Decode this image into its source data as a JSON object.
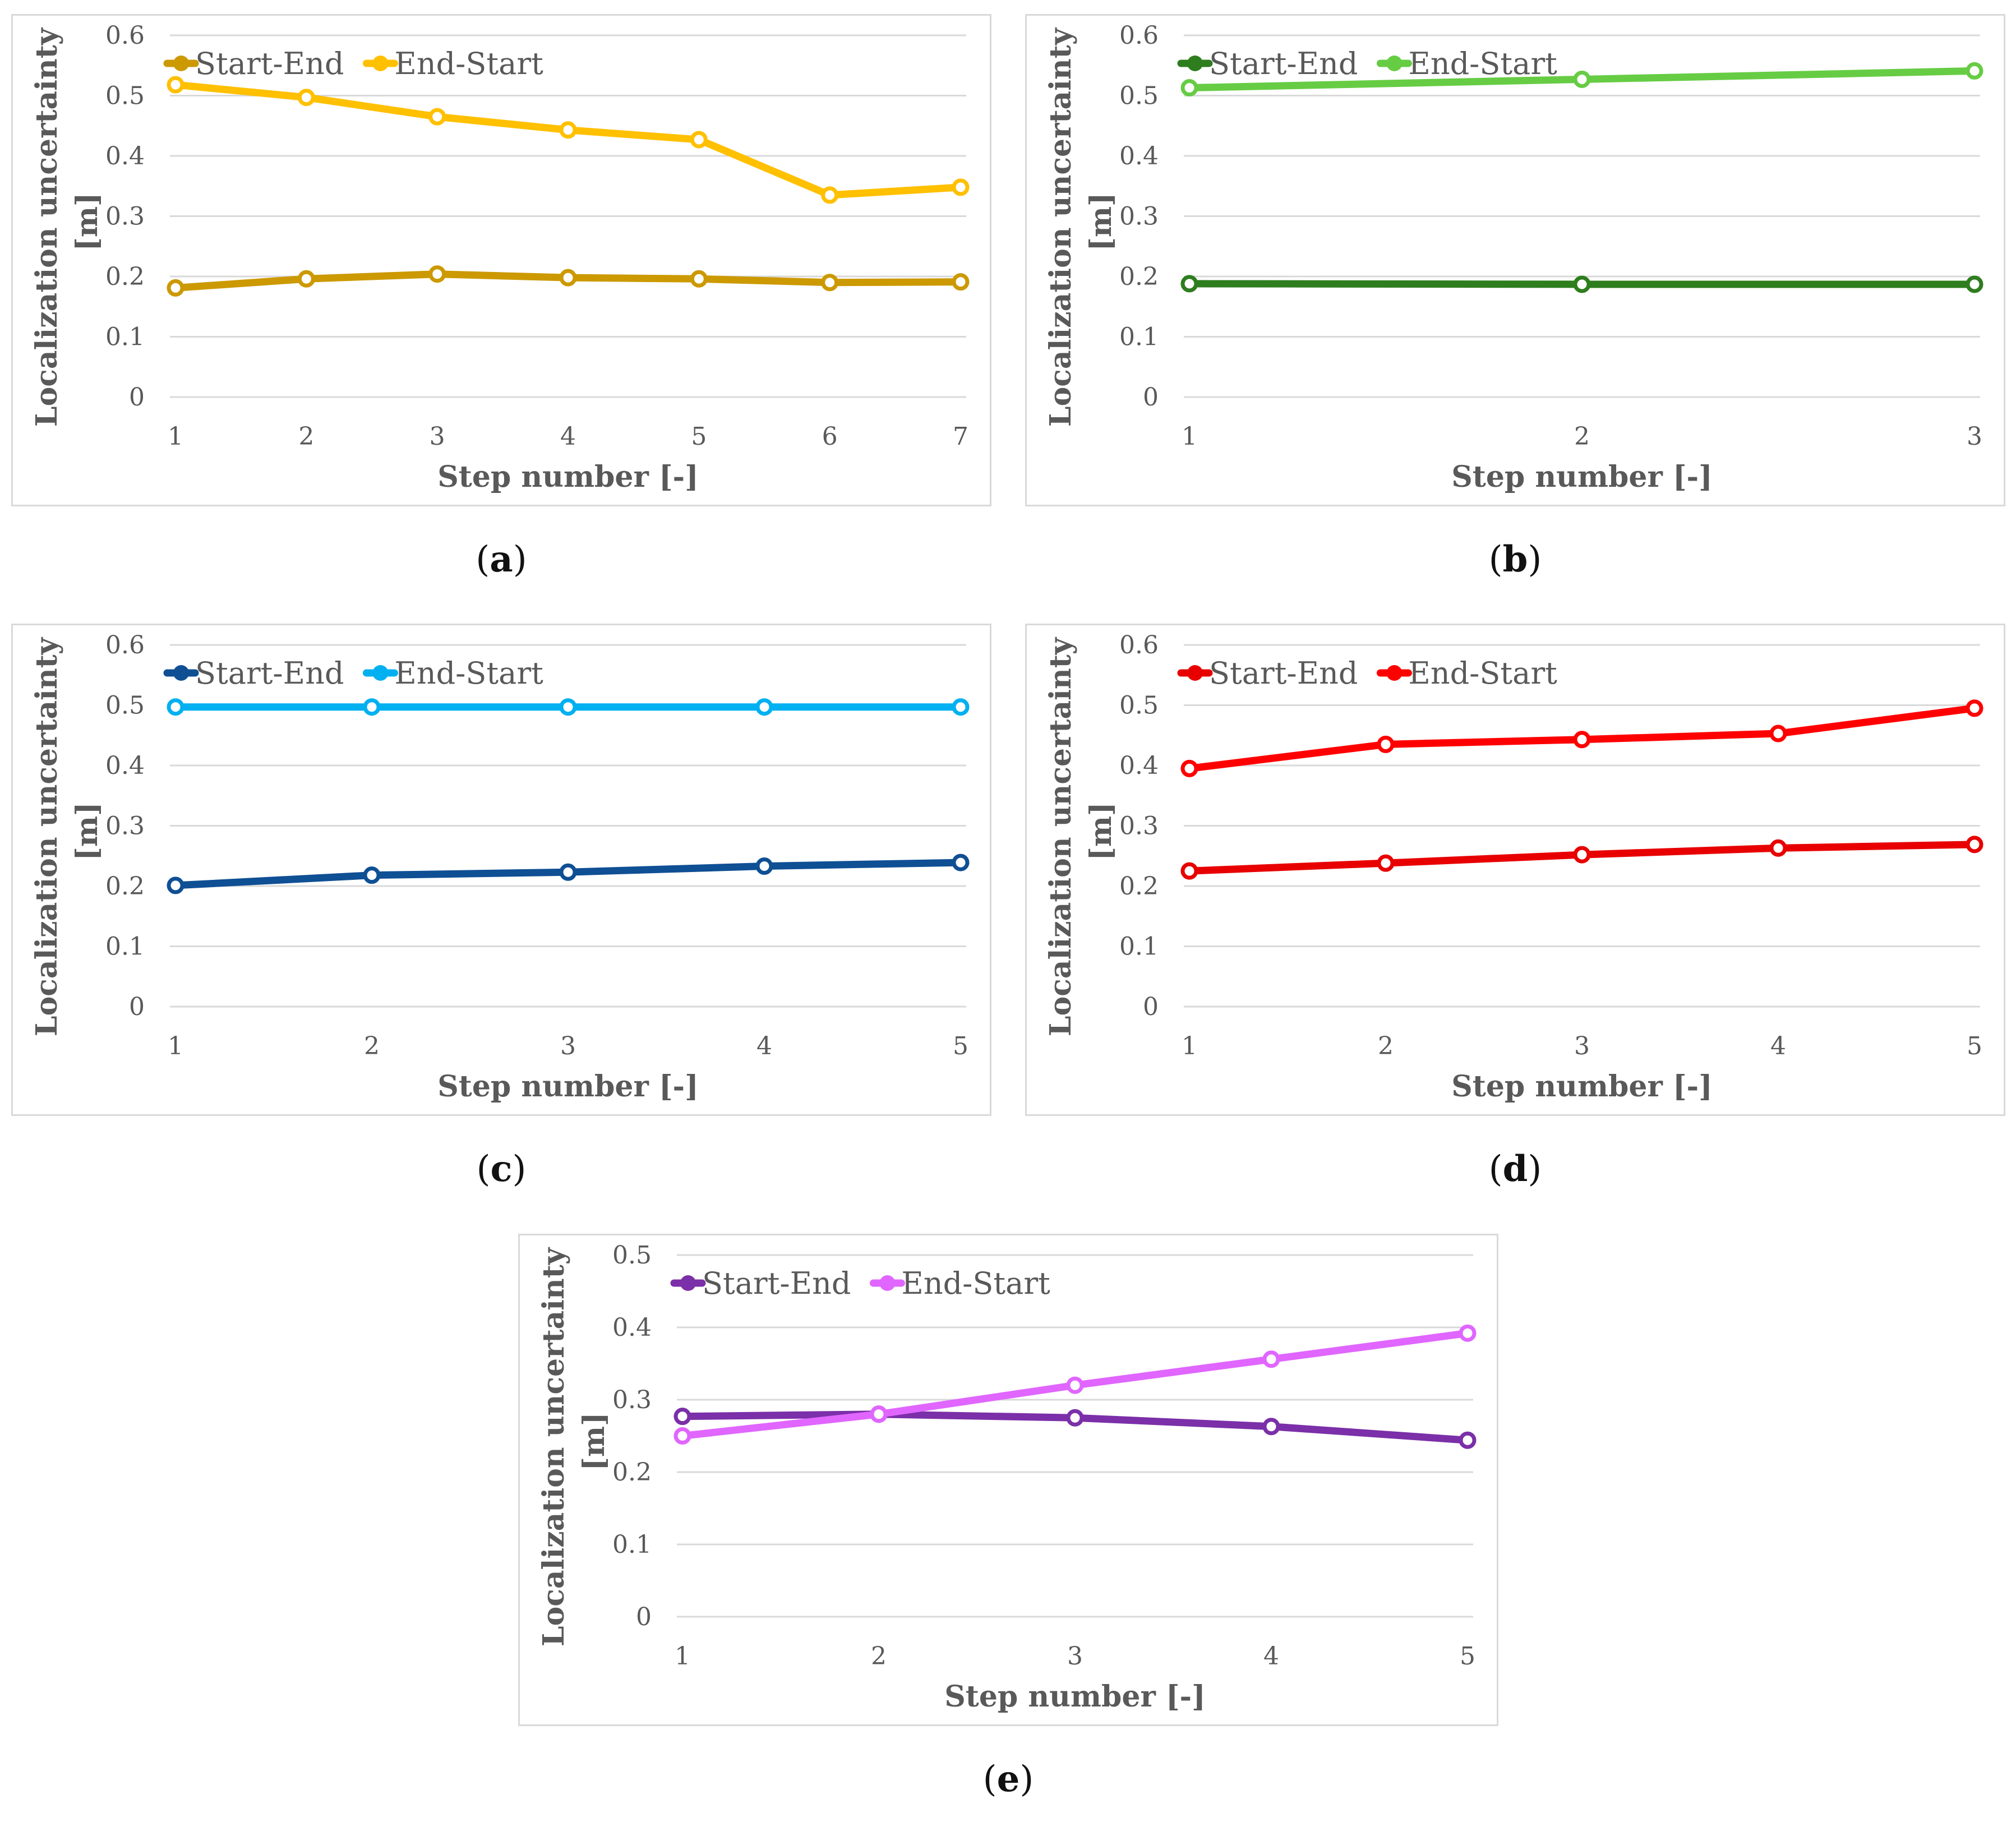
{
  "chart_data": [
    {
      "id": "a",
      "type": "line",
      "caption": "a",
      "xlabel": "Step number [-]",
      "ylabel_line1": "Localization uncertainty",
      "ylabel_line2": "[m]",
      "categories": [
        "1",
        "2",
        "3",
        "4",
        "5",
        "6",
        "7"
      ],
      "ylim": [
        0,
        0.6
      ],
      "yticks": [
        "0",
        "0.1",
        "0.2",
        "0.3",
        "0.4",
        "0.5",
        "0.6"
      ],
      "grid": true,
      "legend_position": "top-left",
      "series": [
        {
          "name": "Start-End",
          "color": "#cc9900",
          "values": [
            0.181,
            0.196,
            0.204,
            0.198,
            0.196,
            0.19,
            0.191
          ]
        },
        {
          "name": "End-Start",
          "color": "#ffc000",
          "values": [
            0.518,
            0.497,
            0.465,
            0.443,
            0.427,
            0.335,
            0.348
          ]
        }
      ]
    },
    {
      "id": "b",
      "type": "line",
      "caption": "b",
      "xlabel": "Step number [-]",
      "ylabel_line1": "Localization uncertainty",
      "ylabel_line2": "[m]",
      "categories": [
        "1",
        "2",
        "3"
      ],
      "ylim": [
        0,
        0.6
      ],
      "yticks": [
        "0",
        "0.1",
        "0.2",
        "0.3",
        "0.4",
        "0.5",
        "0.6"
      ],
      "grid": true,
      "legend_position": "top-left",
      "series": [
        {
          "name": "Start-End",
          "color": "#2e7d1e",
          "values": [
            0.188,
            0.187,
            0.187
          ]
        },
        {
          "name": "End-Start",
          "color": "#66cc44",
          "values": [
            0.513,
            0.527,
            0.541
          ]
        }
      ]
    },
    {
      "id": "c",
      "type": "line",
      "caption": "c",
      "xlabel": "Step number [-]",
      "ylabel_line1": "Localization uncertainty",
      "ylabel_line2": "[m]",
      "categories": [
        "1",
        "2",
        "3",
        "4",
        "5"
      ],
      "ylim": [
        0,
        0.6
      ],
      "yticks": [
        "0",
        "0.1",
        "0.2",
        "0.3",
        "0.4",
        "0.5",
        "0.6"
      ],
      "grid": true,
      "legend_position": "top-left",
      "series": [
        {
          "name": "Start-End",
          "color": "#0f4f94",
          "values": [
            0.201,
            0.218,
            0.223,
            0.233,
            0.239
          ]
        },
        {
          "name": "End-Start",
          "color": "#00b0f0",
          "values": [
            0.497,
            0.497,
            0.497,
            0.497,
            0.497
          ]
        }
      ]
    },
    {
      "id": "d",
      "type": "line",
      "caption": "d",
      "xlabel": "Step number [-]",
      "ylabel_line1": "Localization uncertainty",
      "ylabel_line2": "[m]",
      "categories": [
        "1",
        "2",
        "3",
        "4",
        "5"
      ],
      "ylim": [
        0,
        0.6
      ],
      "yticks": [
        "0",
        "0.1",
        "0.2",
        "0.3",
        "0.4",
        "0.5",
        "0.6"
      ],
      "grid": true,
      "legend_position": "top-left",
      "series": [
        {
          "name": "Start-End",
          "color": "#e80000",
          "values": [
            0.225,
            0.238,
            0.252,
            0.263,
            0.269
          ]
        },
        {
          "name": "End-Start",
          "color": "#ff0000",
          "values": [
            0.395,
            0.435,
            0.443,
            0.453,
            0.495
          ]
        }
      ]
    },
    {
      "id": "e",
      "type": "line",
      "caption": "e",
      "xlabel": "Step number [-]",
      "ylabel_line1": "Localization uncertainty",
      "ylabel_line2": "[m]",
      "categories": [
        "1",
        "2",
        "3",
        "4",
        "5"
      ],
      "ylim": [
        0,
        0.5
      ],
      "yticks": [
        "0",
        "0.1",
        "0.2",
        "0.3",
        "0.4",
        "0.5"
      ],
      "grid": true,
      "legend_position": "top-left",
      "series": [
        {
          "name": "Start-End",
          "color": "#7b2fa8",
          "values": [
            0.277,
            0.28,
            0.275,
            0.263,
            0.244
          ]
        },
        {
          "name": "End-Start",
          "color": "#e066ff",
          "values": [
            0.25,
            0.28,
            0.32,
            0.356,
            0.392
          ]
        }
      ]
    }
  ]
}
